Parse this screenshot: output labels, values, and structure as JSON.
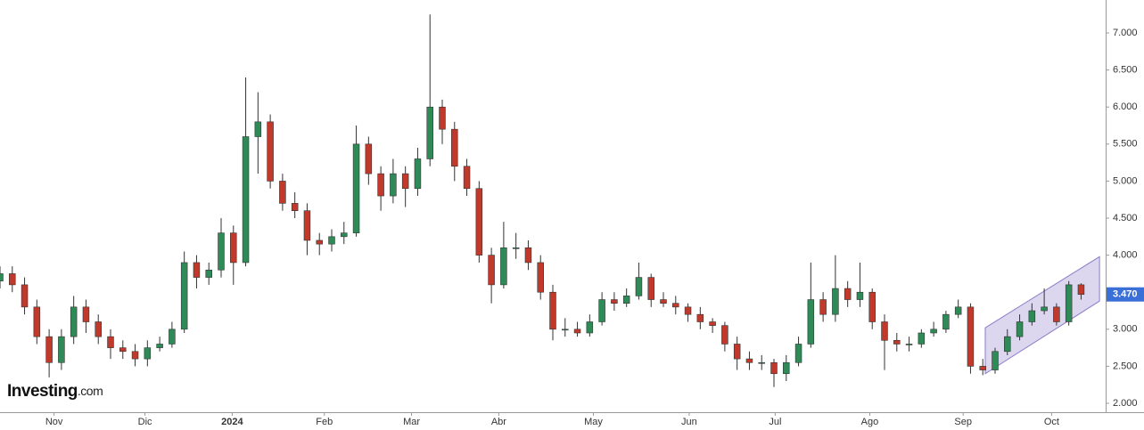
{
  "chart_data": {
    "type": "candlestick",
    "brand": "Investing",
    "brand_suffix": ".com",
    "x": [
      0,
      1,
      2,
      3,
      4,
      5,
      6,
      7,
      8,
      9,
      10,
      11,
      12,
      13,
      14,
      15,
      16,
      17,
      18,
      19,
      20,
      21,
      22,
      23,
      24,
      25,
      26,
      27,
      28,
      29,
      30,
      31,
      32,
      33,
      34,
      35,
      36,
      37,
      38,
      39,
      40,
      41,
      42,
      43,
      44,
      45,
      46,
      47,
      48,
      49,
      50,
      51,
      52,
      53,
      54,
      55,
      56,
      57,
      58,
      59,
      60,
      61,
      62,
      63,
      64,
      65,
      66,
      67,
      68,
      69,
      70,
      71,
      72,
      73,
      74,
      75,
      76,
      77,
      78,
      79,
      80,
      81,
      82,
      83,
      84,
      85,
      86,
      87,
      88
    ],
    "open": [
      3.65,
      3.75,
      3.6,
      3.3,
      2.9,
      2.55,
      2.9,
      3.3,
      3.1,
      2.9,
      2.75,
      2.7,
      2.6,
      2.75,
      2.8,
      3.0,
      3.9,
      3.7,
      3.8,
      4.3,
      3.9,
      5.6,
      5.8,
      5.0,
      4.7,
      4.6,
      4.2,
      4.15,
      4.25,
      4.3,
      5.5,
      5.1,
      4.8,
      5.1,
      4.9,
      5.3,
      6.0,
      5.7,
      5.2,
      4.9,
      4.0,
      3.6,
      4.1,
      4.1,
      3.9,
      3.5,
      3.0,
      3.0,
      2.95,
      3.1,
      3.4,
      3.35,
      3.45,
      3.7,
      3.4,
      3.35,
      3.3,
      3.2,
      3.1,
      3.05,
      2.8,
      2.6,
      2.55,
      2.55,
      2.4,
      2.55,
      2.8,
      3.4,
      3.2,
      3.55,
      3.4,
      3.5,
      3.1,
      2.85,
      2.8,
      2.8,
      2.95,
      3.0,
      3.2,
      3.3,
      2.5,
      2.45,
      2.7,
      2.9,
      3.1,
      3.25,
      3.3,
      3.1,
      3.6
    ],
    "high": [
      3.85,
      3.85,
      3.7,
      3.4,
      3.0,
      3.0,
      3.45,
      3.4,
      3.2,
      3.0,
      2.85,
      2.8,
      2.85,
      2.9,
      3.1,
      4.05,
      4.0,
      3.9,
      4.5,
      4.4,
      6.4,
      6.2,
      5.9,
      5.1,
      4.85,
      4.7,
      4.3,
      4.35,
      4.45,
      5.75,
      5.6,
      5.2,
      5.3,
      5.2,
      5.45,
      7.25,
      6.1,
      5.8,
      5.3,
      5.0,
      4.1,
      4.45,
      4.3,
      4.2,
      4.0,
      3.6,
      3.15,
      3.1,
      3.2,
      3.5,
      3.5,
      3.55,
      3.9,
      3.75,
      3.5,
      3.45,
      3.35,
      3.3,
      3.15,
      3.1,
      2.9,
      2.7,
      2.65,
      2.6,
      2.65,
      2.9,
      3.9,
      3.5,
      4.0,
      3.65,
      3.9,
      3.55,
      3.2,
      2.95,
      2.9,
      3.0,
      3.1,
      3.25,
      3.4,
      3.35,
      2.6,
      2.75,
      3.0,
      3.2,
      3.35,
      3.55,
      3.35,
      3.65,
      3.62
    ],
    "low": [
      3.55,
      3.5,
      3.2,
      2.8,
      2.35,
      2.45,
      2.8,
      2.95,
      2.8,
      2.6,
      2.6,
      2.5,
      2.5,
      2.7,
      2.75,
      2.95,
      3.55,
      3.6,
      3.7,
      3.6,
      3.85,
      5.1,
      4.9,
      4.6,
      4.5,
      4.0,
      4.0,
      4.05,
      4.15,
      4.25,
      4.95,
      4.6,
      4.7,
      4.65,
      4.8,
      5.2,
      5.5,
      5.0,
      4.8,
      3.9,
      3.35,
      3.55,
      3.95,
      3.8,
      3.4,
      2.85,
      2.9,
      2.9,
      2.9,
      3.05,
      3.25,
      3.3,
      3.4,
      3.3,
      3.3,
      3.2,
      3.1,
      3.0,
      2.95,
      2.7,
      2.45,
      2.45,
      2.45,
      2.22,
      2.3,
      2.5,
      2.75,
      3.1,
      3.1,
      3.3,
      3.3,
      3.0,
      2.45,
      2.7,
      2.7,
      2.75,
      2.9,
      2.95,
      3.15,
      2.4,
      2.38,
      2.4,
      2.65,
      2.85,
      3.05,
      3.2,
      3.05,
      3.05,
      3.4
    ],
    "close": [
      3.75,
      3.6,
      3.3,
      2.9,
      2.55,
      2.9,
      3.3,
      3.1,
      2.9,
      2.75,
      2.7,
      2.6,
      2.75,
      2.8,
      3.0,
      3.9,
      3.7,
      3.8,
      4.3,
      3.9,
      5.6,
      5.8,
      5.0,
      4.7,
      4.6,
      4.2,
      4.15,
      4.25,
      4.3,
      5.5,
      5.1,
      4.8,
      5.1,
      4.9,
      5.3,
      6.0,
      5.7,
      5.2,
      4.9,
      4.0,
      3.6,
      4.1,
      4.1,
      3.9,
      3.5,
      3.0,
      3.0,
      2.95,
      3.1,
      3.4,
      3.35,
      3.45,
      3.7,
      3.4,
      3.35,
      3.3,
      3.2,
      3.1,
      3.05,
      2.8,
      2.6,
      2.55,
      2.55,
      2.4,
      2.55,
      2.8,
      3.4,
      3.2,
      3.55,
      3.4,
      3.5,
      3.1,
      2.85,
      2.8,
      2.8,
      2.95,
      3.0,
      3.2,
      3.3,
      2.5,
      2.45,
      2.7,
      2.9,
      3.1,
      3.25,
      3.3,
      3.1,
      3.6,
      3.47
    ],
    "up_color": "#2e8b57",
    "down_color": "#c0392b",
    "xlim": [
      0,
      90
    ],
    "ylim": [
      1.88,
      7.445
    ],
    "grid": false,
    "xticks": [
      {
        "value": 4.4,
        "label": "Nov"
      },
      {
        "value": 11.8,
        "label": "Dic"
      },
      {
        "value": 18.9,
        "label": "2024"
      },
      {
        "value": 26.4,
        "label": "Feb"
      },
      {
        "value": 33.5,
        "label": "Mar"
      },
      {
        "value": 40.6,
        "label": "Abr"
      },
      {
        "value": 48.3,
        "label": "May"
      },
      {
        "value": 56.1,
        "label": "Jun"
      },
      {
        "value": 63.1,
        "label": "Jul"
      },
      {
        "value": 70.8,
        "label": "Ago"
      },
      {
        "value": 78.4,
        "label": "Sep"
      },
      {
        "value": 85.6,
        "label": "Oct"
      }
    ],
    "yticks": [
      {
        "value": 2,
        "label": "2.000"
      },
      {
        "value": 2.5,
        "label": "2.500"
      },
      {
        "value": 3,
        "label": "3.000"
      },
      {
        "value": 3.5,
        "label": "3.500"
      },
      {
        "value": 4,
        "label": "4.000"
      },
      {
        "value": 4.5,
        "label": "4.500"
      },
      {
        "value": 5,
        "label": "5.000"
      },
      {
        "value": 5.5,
        "label": "5.500"
      },
      {
        "value": 6,
        "label": "6.000"
      },
      {
        "value": 6.5,
        "label": "6.500"
      },
      {
        "value": 7,
        "label": "7.000"
      }
    ],
    "last_price": {
      "value": 3.47,
      "label": "3.470"
    },
    "channel": {
      "x": [
        80.2,
        89.5
      ],
      "upper": [
        3.02,
        3.98
      ],
      "lower": [
        2.4,
        3.38
      ],
      "color": "#8a7cc8"
    }
  }
}
